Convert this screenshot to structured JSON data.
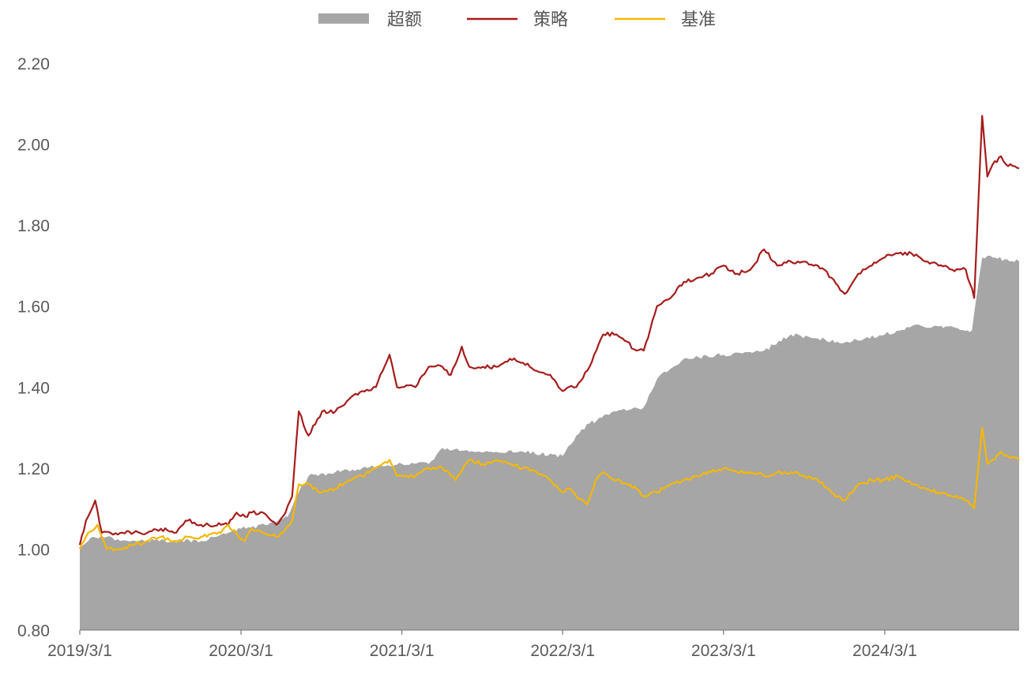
{
  "colors": {
    "excess": "#a6a6a6",
    "strategy": "#a51c1c",
    "benchmark": "#f5b800",
    "axis": "#808080",
    "tick_text": "#595959"
  },
  "chart_data": {
    "type": "line",
    "title": "",
    "xlabel": "",
    "ylabel": "",
    "ylim": [
      0.8,
      2.2
    ],
    "yticks": [
      0.8,
      1.0,
      1.2,
      1.4,
      1.6,
      1.8,
      2.0,
      2.2
    ],
    "ytick_labels": [
      "0.80",
      "1.00",
      "1.20",
      "1.40",
      "1.60",
      "1.80",
      "2.00",
      "2.20"
    ],
    "xlim": [
      "2019-03-01",
      "2024-12-31"
    ],
    "xticks": [
      "2019-03-01",
      "2020-03-01",
      "2021-03-01",
      "2022-03-01",
      "2023-03-01",
      "2024-03-01"
    ],
    "xtick_labels": [
      "2019/3/1",
      "2020/3/1",
      "2021/3/1",
      "2022/3/1",
      "2023/3/1",
      "2024/3/1"
    ],
    "grid": false,
    "legend_position": "top-center",
    "legend": [
      {
        "label": "超额",
        "style": "area",
        "color": "#a6a6a6"
      },
      {
        "label": "策略",
        "style": "line",
        "color": "#a51c1c"
      },
      {
        "label": "基准",
        "style": "line",
        "color": "#f5b800"
      }
    ],
    "series": [
      {
        "name": "超额",
        "type": "area",
        "color": "#a6a6a6",
        "x": [
          "2019-03-01",
          "2019-04-01",
          "2019-05-01",
          "2019-06-01",
          "2019-08-01",
          "2019-10-01",
          "2019-12-01",
          "2020-02-01",
          "2020-03-01",
          "2020-05-01",
          "2020-06-15",
          "2020-07-10",
          "2020-08-01",
          "2020-10-01",
          "2020-12-01",
          "2021-03-01",
          "2021-05-01",
          "2021-06-01",
          "2021-08-01",
          "2021-10-01",
          "2021-12-01",
          "2022-03-01",
          "2022-04-01",
          "2022-05-01",
          "2022-07-01",
          "2022-09-01",
          "2022-10-01",
          "2022-12-01",
          "2023-03-01",
          "2023-06-01",
          "2023-08-01",
          "2023-10-01",
          "2023-12-01",
          "2024-03-01",
          "2024-05-01",
          "2024-07-01",
          "2024-09-15",
          "2024-10-08",
          "2024-11-01",
          "2024-12-31"
        ],
        "values": [
          1.0,
          1.03,
          1.03,
          1.02,
          1.02,
          1.02,
          1.02,
          1.04,
          1.05,
          1.06,
          1.08,
          1.14,
          1.18,
          1.19,
          1.2,
          1.21,
          1.21,
          1.25,
          1.24,
          1.24,
          1.24,
          1.23,
          1.28,
          1.31,
          1.34,
          1.35,
          1.42,
          1.47,
          1.48,
          1.49,
          1.53,
          1.52,
          1.51,
          1.53,
          1.55,
          1.55,
          1.54,
          1.72,
          1.72,
          1.71
        ]
      },
      {
        "name": "策略",
        "type": "line",
        "color": "#a51c1c",
        "x": [
          "2019-03-01",
          "2019-03-15",
          "2019-04-05",
          "2019-04-20",
          "2019-05-10",
          "2019-06-01",
          "2019-07-01",
          "2019-08-01",
          "2019-09-01",
          "2019-10-01",
          "2019-11-01",
          "2019-12-01",
          "2020-01-15",
          "2020-02-01",
          "2020-02-20",
          "2020-03-10",
          "2020-03-25",
          "2020-04-20",
          "2020-05-20",
          "2020-06-10",
          "2020-06-25",
          "2020-07-10",
          "2020-08-01",
          "2020-09-01",
          "2020-10-01",
          "2020-11-01",
          "2020-12-01",
          "2021-01-01",
          "2021-02-01",
          "2021-02-18",
          "2021-03-01",
          "2021-04-01",
          "2021-05-01",
          "2021-06-01",
          "2021-06-20",
          "2021-07-15",
          "2021-08-01",
          "2021-09-01",
          "2021-10-01",
          "2021-11-01",
          "2021-12-01",
          "2022-01-01",
          "2022-02-01",
          "2022-03-01",
          "2022-03-15",
          "2022-04-01",
          "2022-05-01",
          "2022-06-01",
          "2022-07-01",
          "2022-07-15",
          "2022-08-15",
          "2022-09-01",
          "2022-10-01",
          "2022-11-01",
          "2022-12-01",
          "2023-01-01",
          "2023-02-01",
          "2023-03-01",
          "2023-04-01",
          "2023-05-01",
          "2023-06-01",
          "2023-07-01",
          "2023-08-01",
          "2023-09-01",
          "2023-10-01",
          "2023-11-01",
          "2023-12-01",
          "2024-01-01",
          "2024-02-01",
          "2024-03-01",
          "2024-04-01",
          "2024-05-01",
          "2024-06-01",
          "2024-07-01",
          "2024-08-01",
          "2024-09-01",
          "2024-09-20",
          "2024-10-08",
          "2024-10-20",
          "2024-11-01",
          "2024-11-20",
          "2024-12-01",
          "2024-12-31"
        ],
        "values": [
          1.01,
          1.07,
          1.12,
          1.04,
          1.04,
          1.04,
          1.04,
          1.04,
          1.05,
          1.04,
          1.07,
          1.06,
          1.06,
          1.06,
          1.09,
          1.08,
          1.09,
          1.09,
          1.06,
          1.09,
          1.13,
          1.34,
          1.28,
          1.34,
          1.34,
          1.37,
          1.39,
          1.4,
          1.48,
          1.4,
          1.4,
          1.4,
          1.45,
          1.45,
          1.43,
          1.5,
          1.45,
          1.45,
          1.45,
          1.47,
          1.46,
          1.44,
          1.43,
          1.39,
          1.4,
          1.4,
          1.45,
          1.53,
          1.53,
          1.52,
          1.49,
          1.49,
          1.6,
          1.62,
          1.66,
          1.67,
          1.68,
          1.7,
          1.68,
          1.69,
          1.74,
          1.7,
          1.71,
          1.71,
          1.7,
          1.67,
          1.63,
          1.68,
          1.7,
          1.72,
          1.73,
          1.73,
          1.71,
          1.7,
          1.69,
          1.69,
          1.62,
          2.07,
          1.92,
          1.95,
          1.97,
          1.95,
          1.94
        ]
      },
      {
        "name": "基准",
        "type": "line",
        "color": "#f5b800",
        "x": [
          "2019-03-01",
          "2019-03-15",
          "2019-04-10",
          "2019-05-01",
          "2019-06-01",
          "2019-07-01",
          "2019-08-01",
          "2019-09-01",
          "2019-10-01",
          "2019-11-01",
          "2019-12-01",
          "2020-01-15",
          "2020-02-01",
          "2020-02-25",
          "2020-03-10",
          "2020-03-25",
          "2020-04-20",
          "2020-05-20",
          "2020-06-10",
          "2020-06-25",
          "2020-07-10",
          "2020-08-01",
          "2020-09-01",
          "2020-10-01",
          "2020-11-01",
          "2020-12-01",
          "2021-01-01",
          "2021-02-01",
          "2021-02-18",
          "2021-03-01",
          "2021-04-01",
          "2021-05-01",
          "2021-06-01",
          "2021-07-01",
          "2021-08-01",
          "2021-09-01",
          "2021-10-01",
          "2021-11-01",
          "2021-12-01",
          "2022-01-01",
          "2022-02-01",
          "2022-03-01",
          "2022-03-15",
          "2022-04-01",
          "2022-04-25",
          "2022-05-15",
          "2022-06-01",
          "2022-07-01",
          "2022-08-01",
          "2022-09-01",
          "2022-10-01",
          "2022-11-01",
          "2022-12-01",
          "2023-01-01",
          "2023-02-01",
          "2023-03-01",
          "2023-04-01",
          "2023-05-01",
          "2023-06-01",
          "2023-07-01",
          "2023-08-01",
          "2023-09-01",
          "2023-10-01",
          "2023-11-01",
          "2023-12-01",
          "2024-01-01",
          "2024-02-01",
          "2024-03-01",
          "2024-04-01",
          "2024-05-01",
          "2024-06-01",
          "2024-07-01",
          "2024-08-01",
          "2024-09-01",
          "2024-09-20",
          "2024-10-08",
          "2024-10-20",
          "2024-11-01",
          "2024-11-20",
          "2024-12-01",
          "2024-12-31"
        ],
        "values": [
          1.0,
          1.03,
          1.06,
          1.0,
          1.0,
          1.01,
          1.02,
          1.03,
          1.02,
          1.03,
          1.03,
          1.04,
          1.06,
          1.03,
          1.02,
          1.05,
          1.04,
          1.03,
          1.05,
          1.07,
          1.16,
          1.16,
          1.14,
          1.15,
          1.17,
          1.18,
          1.2,
          1.22,
          1.18,
          1.18,
          1.18,
          1.2,
          1.2,
          1.17,
          1.22,
          1.21,
          1.22,
          1.21,
          1.2,
          1.19,
          1.17,
          1.14,
          1.15,
          1.13,
          1.11,
          1.17,
          1.19,
          1.17,
          1.16,
          1.13,
          1.14,
          1.16,
          1.17,
          1.18,
          1.19,
          1.2,
          1.19,
          1.19,
          1.18,
          1.19,
          1.19,
          1.18,
          1.17,
          1.14,
          1.12,
          1.16,
          1.17,
          1.17,
          1.18,
          1.16,
          1.15,
          1.14,
          1.13,
          1.12,
          1.1,
          1.3,
          1.21,
          1.22,
          1.24,
          1.23,
          1.22
        ]
      }
    ]
  }
}
